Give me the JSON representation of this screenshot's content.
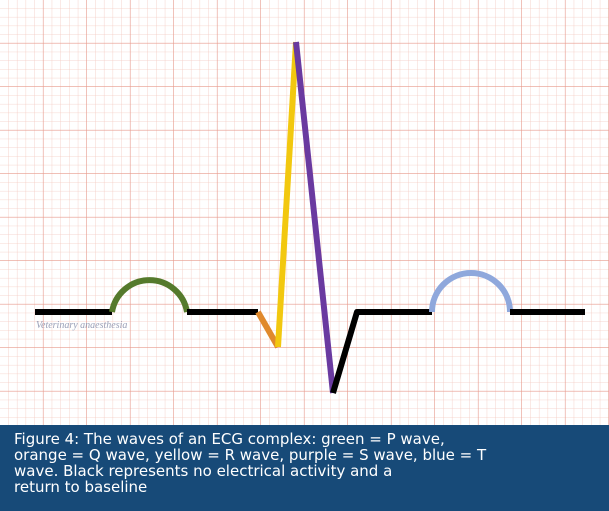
{
  "watermark": "Veterinary anaesthesia",
  "caption": {
    "lines": [
      "Figure 4: The waves of an ECG complex: green = P wave,",
      "orange = Q wave, yellow = R wave, purple = S wave, blue = T",
      "wave. Black represents no electrical activity and a",
      "return to baseline"
    ]
  }
}
